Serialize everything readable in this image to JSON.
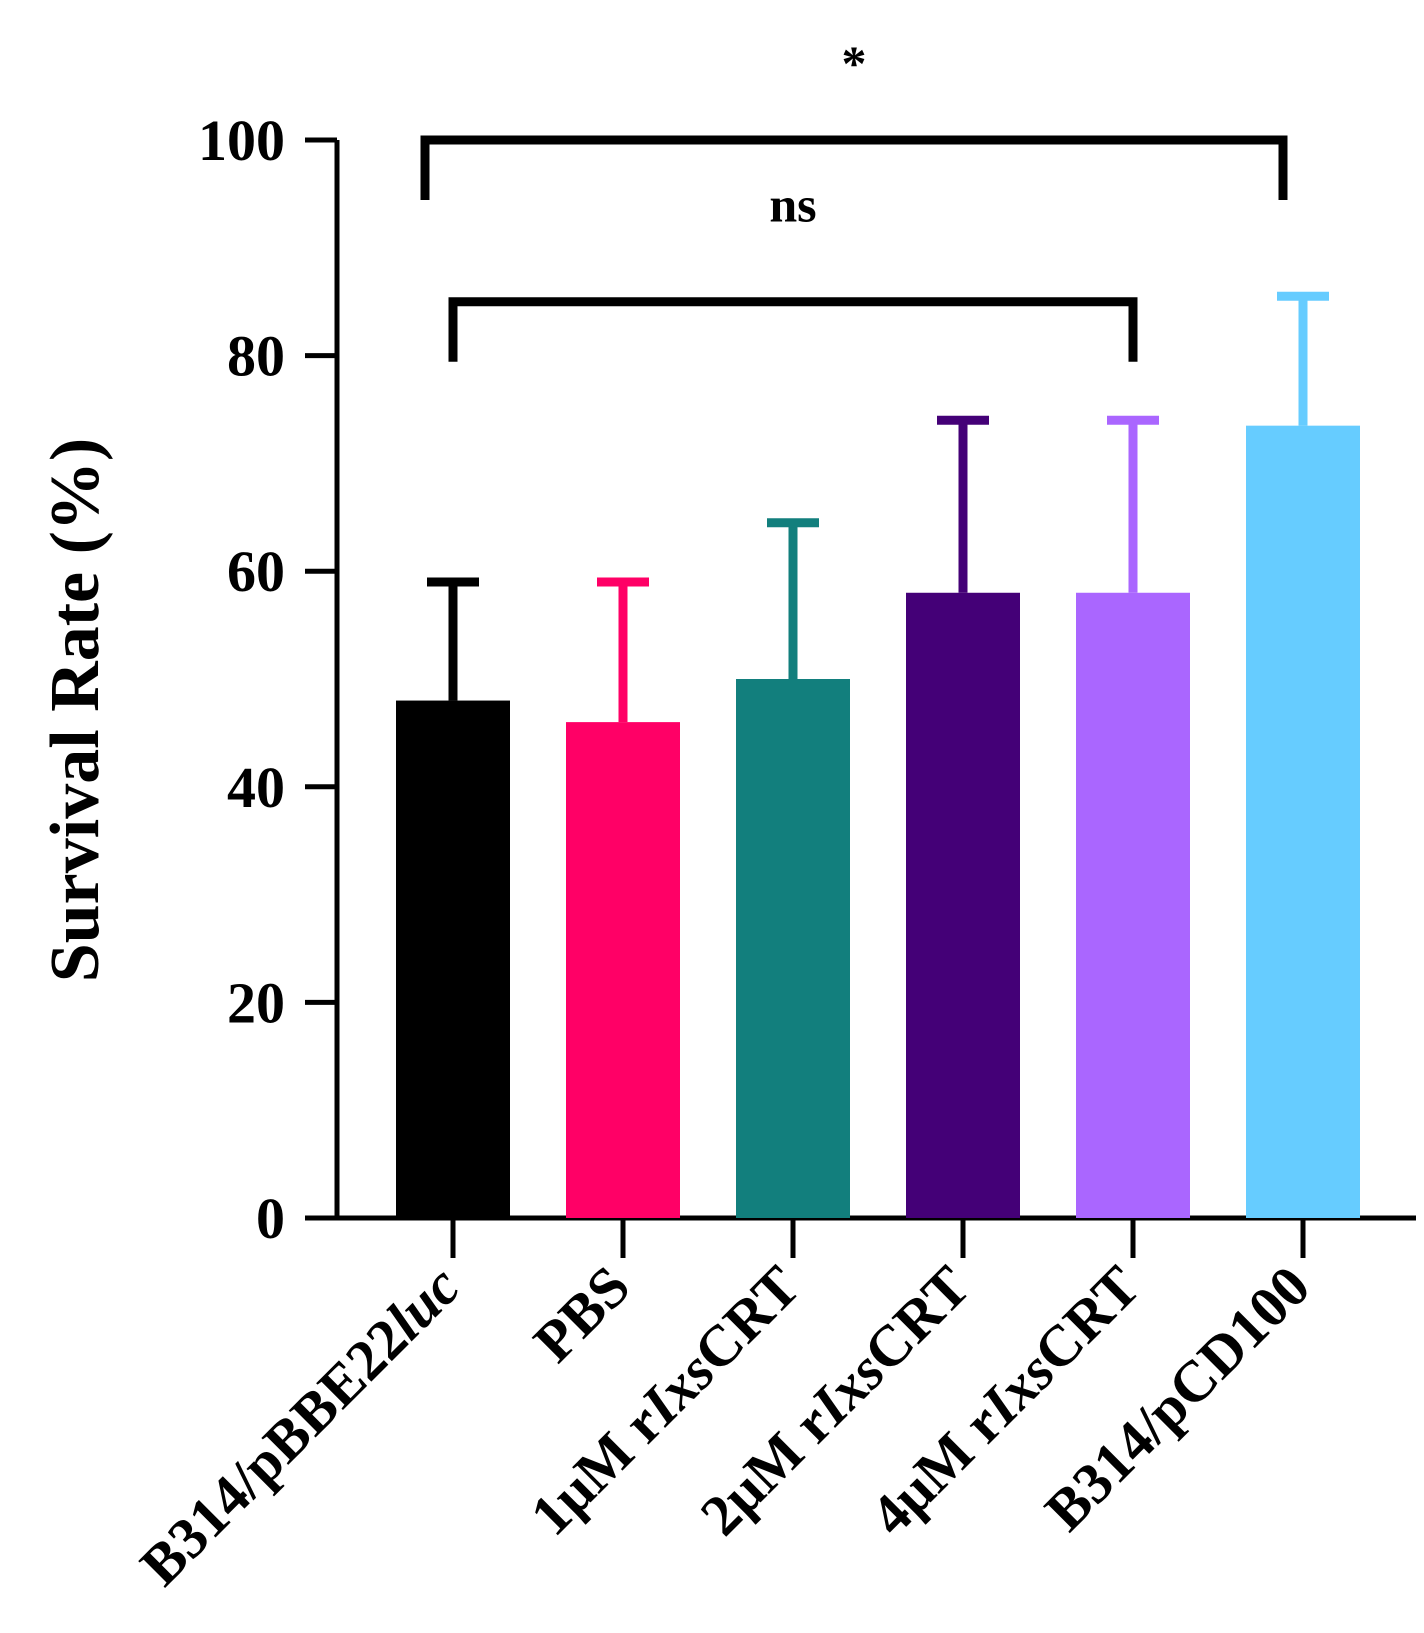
{
  "chart_data": {
    "type": "bar",
    "title": "",
    "xlabel": "",
    "ylabel": "Survival Rate (%)",
    "ylim": [
      0,
      100
    ],
    "yticks": [
      "0",
      "20",
      "40",
      "60",
      "80",
      "100"
    ],
    "grid": false,
    "categories": [
      {
        "prefix": "B314/pBBE22",
        "italic": "luc",
        "suffix": ""
      },
      {
        "prefix": "PBS",
        "italic": "",
        "suffix": ""
      },
      {
        "prefix": "1μM r",
        "italic": "Ixs",
        "suffix": "CRT"
      },
      {
        "prefix": "2μM r",
        "italic": "Ixs",
        "suffix": "CRT"
      },
      {
        "prefix": "4μM r",
        "italic": "Ixs",
        "suffix": "CRT"
      },
      {
        "prefix": "B314/pCD100",
        "italic": "",
        "suffix": ""
      }
    ],
    "values": [
      48,
      46,
      50,
      58,
      58,
      73.5
    ],
    "errors": [
      11,
      13,
      14.5,
      16,
      16,
      12
    ],
    "colors": [
      "#000000",
      "#FF0066",
      "#127F7D",
      "#440077",
      "#AA66FF",
      "#66CCFF"
    ],
    "annotations": [
      {
        "label": "ns",
        "from": 0,
        "to": 4,
        "y": 85
      },
      {
        "label": "*",
        "from": 0,
        "to": 5,
        "y": 100
      }
    ]
  }
}
